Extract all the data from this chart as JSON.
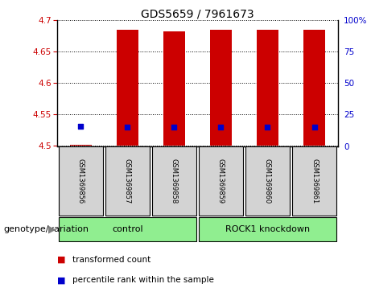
{
  "title": "GDS5659 / 7961673",
  "samples": [
    "GSM1369856",
    "GSM1369857",
    "GSM1369858",
    "GSM1369859",
    "GSM1369860",
    "GSM1369861"
  ],
  "transformed_counts": [
    4.502,
    4.685,
    4.683,
    4.685,
    4.685,
    4.685
  ],
  "percentile_ranks": [
    16,
    15,
    15,
    15,
    15,
    15
  ],
  "ylim_left": [
    4.5,
    4.7
  ],
  "ylim_right": [
    0,
    100
  ],
  "yticks_left": [
    4.5,
    4.55,
    4.6,
    4.65,
    4.7
  ],
  "yticks_right": [
    0,
    25,
    50,
    75,
    100
  ],
  "bar_color": "#cc0000",
  "dot_color": "#0000cc",
  "bar_width": 0.45,
  "control_label": "control",
  "knockdown_label": "ROCK1 knockdown",
  "group_color": "#90ee90",
  "genotype_label": "genotype/variation",
  "legend_red_label": "transformed count",
  "legend_blue_label": "percentile rank within the sample",
  "background_color": "#ffffff",
  "tick_label_color_left": "#cc0000",
  "tick_label_color_right": "#0000cc",
  "sample_bg_color": "#d3d3d3",
  "title_fontsize": 10,
  "tick_fontsize": 7.5,
  "sample_fontsize": 6,
  "group_fontsize": 8,
  "legend_fontsize": 7.5
}
